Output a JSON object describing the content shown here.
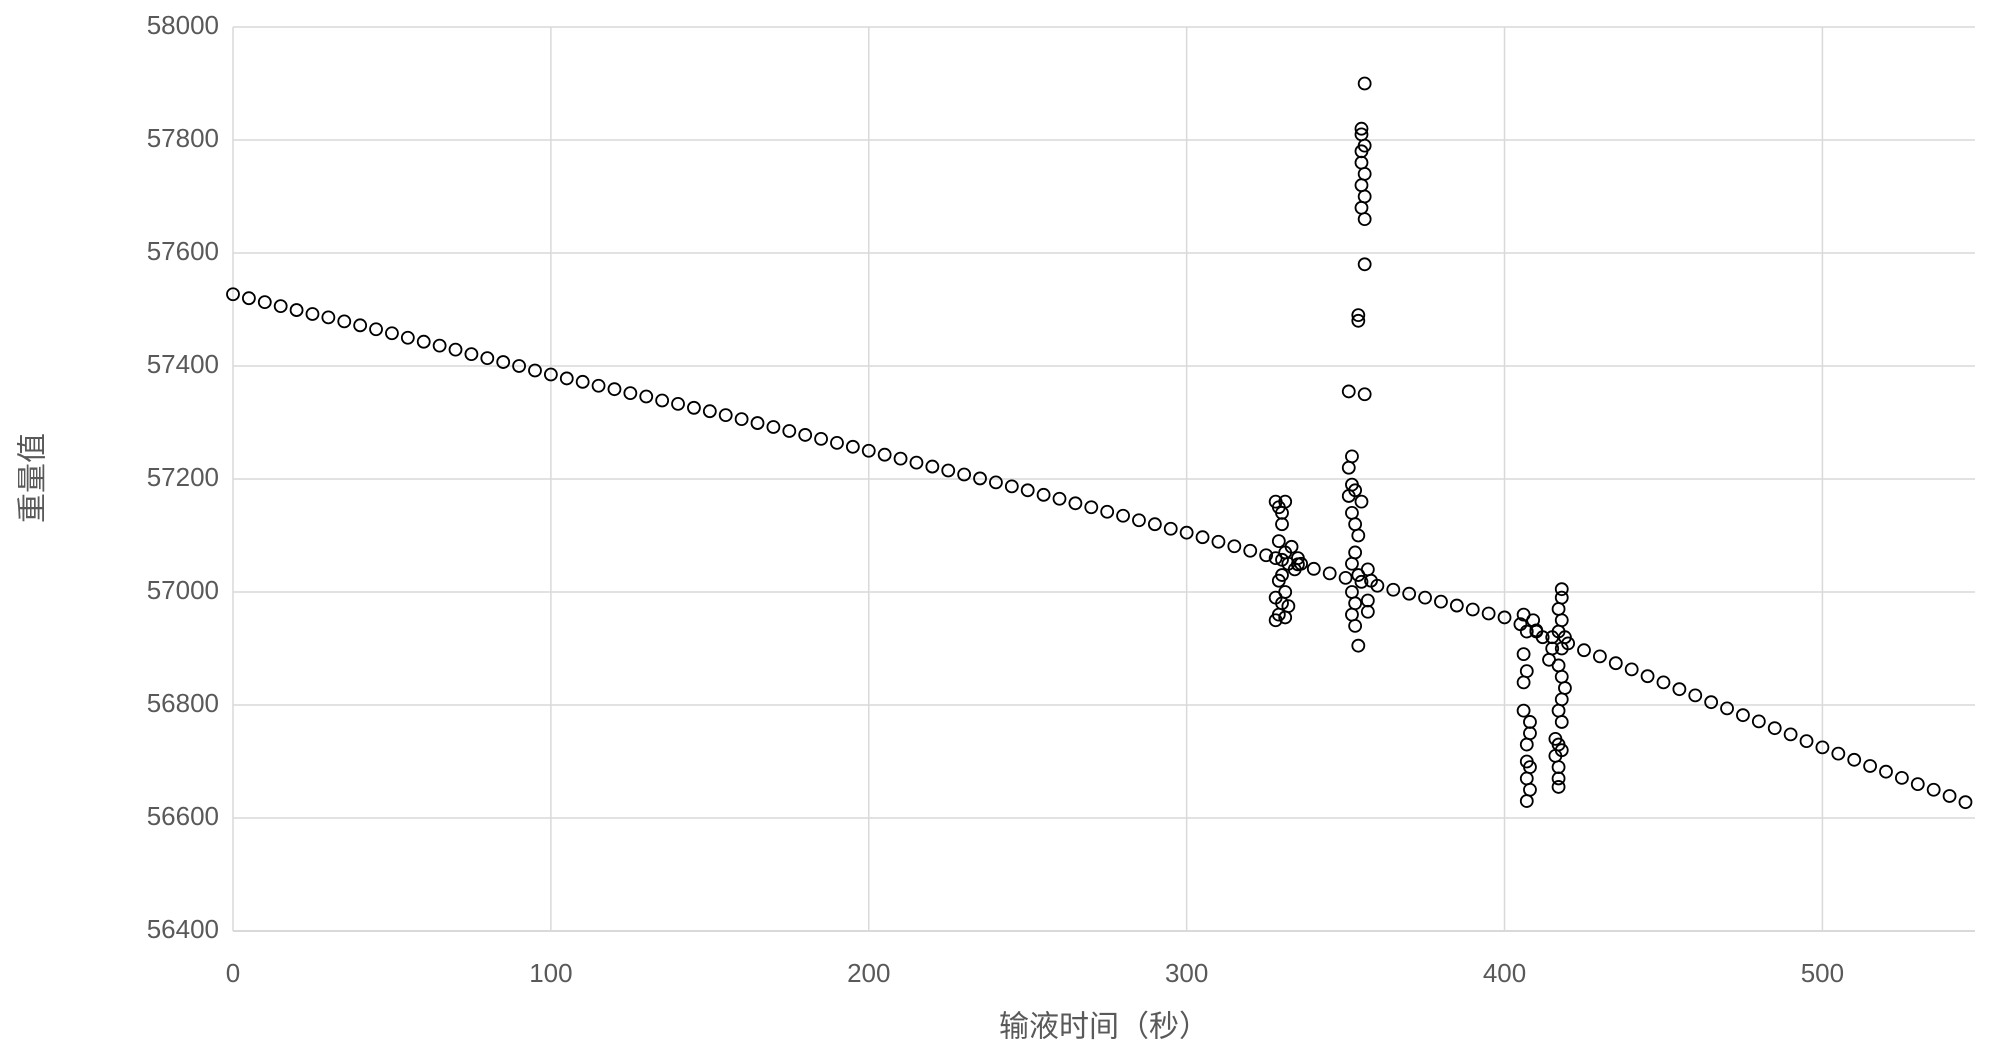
{
  "chart_data": {
    "type": "scatter",
    "x_label": "输液时间（秒）",
    "y_label": "重量值",
    "xlim": [
      0,
      548
    ],
    "ylim": [
      56400,
      58000
    ],
    "xticks": [
      0,
      100,
      200,
      300,
      400,
      500
    ],
    "yticks": [
      56400,
      56600,
      56800,
      57000,
      57200,
      57400,
      57600,
      57800,
      58000
    ],
    "grid": true,
    "series": [
      {
        "color": "#000000",
        "x": [
          0,
          5,
          10,
          15,
          20,
          25,
          30,
          35,
          40,
          45,
          50,
          55,
          60,
          65,
          70,
          75,
          80,
          85,
          90,
          95,
          100,
          105,
          110,
          115,
          120,
          125,
          130,
          135,
          140,
          145,
          150,
          155,
          160,
          165,
          170,
          175,
          180,
          185,
          190,
          195,
          200,
          205,
          210,
          215,
          220,
          225,
          230,
          235,
          240,
          245,
          250,
          255,
          260,
          265,
          270,
          275,
          280,
          285,
          290,
          295,
          300,
          305,
          310,
          315,
          320,
          325,
          330,
          335,
          340,
          345,
          350,
          355,
          360,
          365,
          370,
          375,
          380,
          385,
          390,
          395,
          400,
          405,
          410,
          415,
          420,
          425,
          430,
          435,
          440,
          445,
          450,
          455,
          460,
          465,
          470,
          475,
          480,
          485,
          490,
          495,
          500,
          505,
          510,
          515,
          520,
          525,
          530,
          535,
          540,
          545,
          328,
          329,
          330,
          331,
          330,
          329,
          331,
          328,
          332,
          330,
          329,
          331,
          328,
          330,
          332,
          329,
          331,
          328,
          333,
          334,
          335,
          336,
          356,
          355,
          355,
          356,
          355,
          355,
          356,
          355,
          356,
          355,
          356,
          356,
          354,
          354,
          351,
          356,
          352,
          351,
          352,
          353,
          351,
          355,
          352,
          353,
          354,
          353,
          352,
          354,
          352,
          353,
          352,
          353,
          354,
          357,
          358,
          357,
          357,
          406,
          407,
          406,
          407,
          406,
          406,
          408,
          408,
          407,
          407,
          408,
          407,
          408,
          407,
          409,
          410,
          412,
          418,
          418,
          417,
          418,
          417,
          419,
          418,
          417,
          418,
          419,
          418,
          417,
          418,
          416,
          417,
          418,
          416,
          417,
          417,
          417,
          415,
          414
        ],
        "values": [
          57527,
          57520,
          57513,
          57506,
          57499,
          57492,
          57486,
          57479,
          57472,
          57465,
          57458,
          57450,
          57443,
          57436,
          57429,
          57421,
          57414,
          57407,
          57400,
          57392,
          57385,
          57378,
          57372,
          57365,
          57359,
          57352,
          57346,
          57339,
          57333,
          57326,
          57320,
          57313,
          57306,
          57299,
          57292,
          57285,
          57278,
          57271,
          57264,
          57257,
          57250,
          57243,
          57236,
          57229,
          57222,
          57215,
          57208,
          57201,
          57194,
          57187,
          57180,
          57172,
          57165,
          57157,
          57150,
          57142,
          57135,
          57127,
          57120,
          57112,
          57105,
          57097,
          57089,
          57081,
          57073,
          57065,
          57057,
          57049,
          57041,
          57033,
          57025,
          57018,
          57011,
          57004,
          56997,
          56990,
          56983,
          56976,
          56969,
          56962,
          56955,
          56943,
          56932,
          56920,
          56909,
          56897,
          56886,
          56874,
          56863,
          56851,
          56840,
          56828,
          56817,
          56805,
          56794,
          56782,
          56771,
          56759,
          56748,
          56736,
          56725,
          56714,
          56703,
          56692,
          56682,
          56671,
          56660,
          56650,
          56639,
          56628,
          57160,
          57150,
          57140,
          57160,
          57120,
          57090,
          57070,
          57060,
          57050,
          57030,
          57020,
          57000,
          56990,
          56980,
          56975,
          56960,
          56955,
          56950,
          57080,
          57040,
          57060,
          57050,
          57900,
          57820,
          57810,
          57790,
          57780,
          57760,
          57740,
          57720,
          57700,
          57680,
          57660,
          57580,
          57490,
          57480,
          57355,
          57350,
          57240,
          57220,
          57190,
          57180,
          57170,
          57160,
          57140,
          57120,
          57100,
          57070,
          57050,
          57030,
          57000,
          56980,
          56960,
          56940,
          56905,
          57040,
          57020,
          56985,
          56965,
          56960,
          56930,
          56890,
          56860,
          56840,
          56790,
          56770,
          56750,
          56730,
          56700,
          56690,
          56670,
          56650,
          56630,
          56950,
          56930,
          56920,
          57005,
          56990,
          56970,
          56950,
          56930,
          56920,
          56900,
          56870,
          56850,
          56830,
          56810,
          56790,
          56770,
          56740,
          56730,
          56720,
          56710,
          56690,
          56670,
          56655,
          56900,
          56880
        ]
      }
    ]
  }
}
